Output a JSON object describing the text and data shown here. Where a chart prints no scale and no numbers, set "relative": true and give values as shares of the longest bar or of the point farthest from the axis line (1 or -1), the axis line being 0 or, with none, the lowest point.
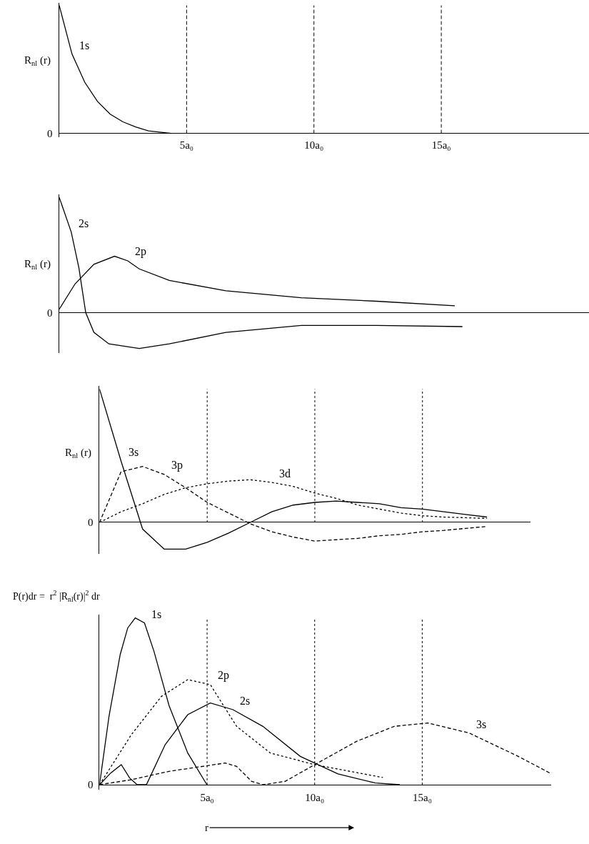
{
  "chart_data": [
    {
      "type": "line",
      "relative": true,
      "ylabel": "R$_{nl}$ (r)",
      "xlim": [
        0,
        20.8
      ],
      "tick_labels": "x",
      "xticks": [
        {
          "value": 5,
          "label": "5a₀"
        },
        {
          "value": 10,
          "label": "10a₀"
        },
        {
          "value": 15,
          "label": "15a₀"
        }
      ],
      "ref_lines": [
        {
          "axis": "x",
          "value": 5,
          "line_style": "dashed",
          "color": "#000000"
        },
        {
          "axis": "x",
          "value": 10,
          "line_style": "dashed",
          "color": "#000000"
        },
        {
          "axis": "x",
          "value": 15,
          "line_style": "dashed",
          "color": "#000000"
        }
      ],
      "series": [
        {
          "name": "1s",
          "color": "#000000",
          "line_style": "solid",
          "x": [
            0,
            0.5,
            1,
            1.5,
            2,
            2.5,
            3,
            3.5,
            4.4
          ],
          "values": [
            1,
            0.62,
            0.4,
            0.25,
            0.15,
            0.09,
            0.05,
            0.02,
            0
          ]
        }
      ],
      "annotations": [
        "0"
      ]
    },
    {
      "type": "line",
      "relative": true,
      "ylabel": "R$_{nl}$ (r)",
      "xlim": [
        0,
        20.8
      ],
      "tick_labels": false,
      "series": [
        {
          "name": "2s",
          "color": "#000000",
          "line_style": "solid",
          "x": [
            0,
            0.47,
            0.77,
            1.04,
            1.36,
            1.95,
            3.14,
            4.32,
            6.54,
            9.5,
            12.46,
            15.83
          ],
          "values": [
            1,
            0.7,
            0.39,
            0,
            -0.17,
            -0.27,
            -0.31,
            -0.27,
            -0.17,
            -0.11,
            -0.11,
            -0.12
          ]
        },
        {
          "name": "2p",
          "color": "#000000",
          "line_style": "solid",
          "x": [
            0,
            0.62,
            1.36,
            2.17,
            2.69,
            3.14,
            4.32,
            6.54,
            9.5,
            12.46,
            15.53
          ],
          "values": [
            0.03,
            0.25,
            0.42,
            0.49,
            0.45,
            0.38,
            0.28,
            0.19,
            0.13,
            0.1,
            0.06
          ]
        }
      ],
      "annotations": [
        "0"
      ]
    },
    {
      "type": "line",
      "relative": true,
      "ylabel": "R$_{nl}$ (r)",
      "tick_labels": false,
      "categories": [
        null,
        null,
        null,
        null,
        null,
        null,
        null,
        null,
        null,
        null,
        null,
        null,
        null,
        null,
        null,
        null,
        null,
        null,
        null,
        null,
        null
      ],
      "grid": "x",
      "series": [
        {
          "name": "3s",
          "color": "#000000",
          "line_style": "solid",
          "values": [
            1,
            0.46,
            -0.05,
            -0.2,
            -0.2,
            -0.15,
            -0.08,
            0,
            0.08,
            0.13,
            0.15,
            0.16,
            0.15,
            0.14,
            0.11,
            0.1,
            0.08,
            0.06,
            0.04,
            null,
            null
          ]
        },
        {
          "name": "3p",
          "color": "#000000",
          "line_style": "dashed",
          "values": [
            0,
            0.38,
            0.42,
            0.36,
            0.26,
            0.15,
            0.07,
            -0.01,
            -0.07,
            -0.11,
            -0.14,
            -0.13,
            -0.12,
            -0.1,
            -0.09,
            -0.07,
            -0.06,
            -0.045,
            -0.03,
            null,
            null
          ]
        },
        {
          "name": "3d",
          "color": "#000000",
          "line_style": "dotted",
          "values": [
            0,
            0.08,
            0.14,
            0.21,
            0.26,
            0.29,
            0.31,
            0.32,
            0.3,
            0.27,
            0.22,
            0.18,
            0.13,
            0.1,
            0.07,
            0.05,
            0.04,
            0.035,
            0.03,
            null,
            null
          ]
        }
      ],
      "annotations": [
        "0"
      ]
    },
    {
      "type": "line",
      "relative": true,
      "ylabel": "P(r)dr =  r$^{2}$ |R$_{nl}$(r)|$^{2}$ dr",
      "xlabel": "r",
      "xlim": [
        0,
        21
      ],
      "tick_labels": "x",
      "xticks": [
        {
          "value": 5,
          "label": "5a₀"
        },
        {
          "value": 10,
          "label": "10a₀"
        },
        {
          "value": 15,
          "label": "15a₀"
        }
      ],
      "ref_lines": [
        {
          "axis": "x",
          "value": 5,
          "line_style": "dotted",
          "color": "#000000"
        },
        {
          "axis": "x",
          "value": 10,
          "line_style": "dotted",
          "color": "#000000"
        },
        {
          "axis": "x",
          "value": 15,
          "line_style": "dotted",
          "color": "#000000"
        }
      ],
      "series": [
        {
          "name": "1s",
          "color": "#000000",
          "line_style": "solid",
          "x": [
            0,
            0.44,
            0.96,
            1.31,
            1.66,
            2.09,
            2.53,
            3.23,
            4.1,
            4.99
          ],
          "values": [
            0,
            0.41,
            0.78,
            0.94,
            1,
            0.97,
            0.8,
            0.475,
            0.19,
            0
          ]
        },
        {
          "name": "2s",
          "color": "#000000",
          "line_style": "solid",
          "x": [
            0,
            0.52,
            1.01,
            1.4,
            1.75,
            2.18,
            3.05,
            4.1,
            5.15,
            6.2,
            7.59,
            9.33,
            11.08,
            12.82,
            13.96
          ],
          "values": [
            0,
            0.07,
            0.12,
            0.04,
            0,
            0,
            0.24,
            0.42,
            0.49,
            0.45,
            0.35,
            0.17,
            0.065,
            0.01,
            0
          ]
        },
        {
          "name": "2p",
          "color": "#000000",
          "line_style": "dotted",
          "x": [
            0,
            1.48,
            2.88,
            4.1,
            5.15,
            6.37,
            7.94,
            10,
            13.17
          ],
          "values": [
            0,
            0.3,
            0.53,
            0.63,
            0.6,
            0.35,
            0.19,
            0.12,
            0.043
          ]
        },
        {
          "name": "3s",
          "color": "#000000",
          "line_style": "dashed",
          "x": [
            0,
            1.48,
            3.23,
            5.84,
            6.37,
            7.07,
            7.59,
            8.63,
            10,
            11.95,
            13.7,
            15.26,
            17.18,
            19.46,
            20.93
          ],
          "values": [
            0,
            0.03,
            0.08,
            0.13,
            0.11,
            0.02,
            0,
            0.02,
            0.12,
            0.26,
            0.35,
            0.37,
            0.31,
            0.17,
            0.07
          ]
        }
      ],
      "annotations": [
        "0"
      ]
    }
  ]
}
